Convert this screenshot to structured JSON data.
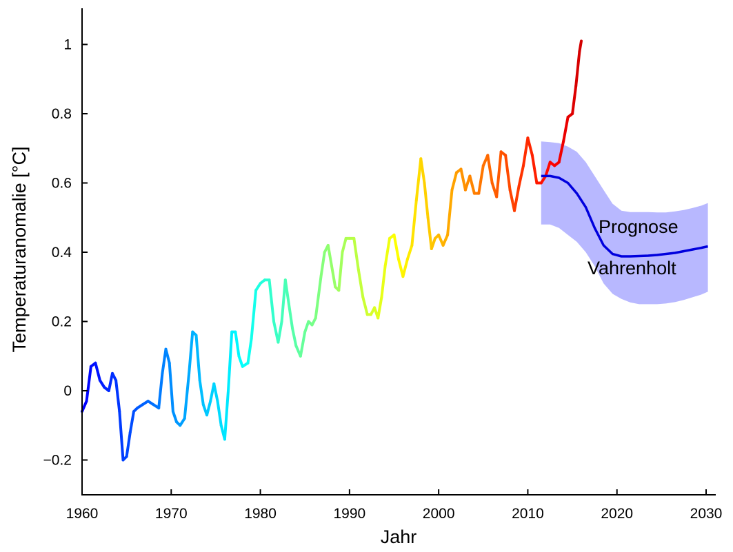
{
  "chart_data": {
    "type": "line",
    "xlabel": "Jahr",
    "ylabel": "Temperaturanomalie [°C]",
    "xlim": [
      1960,
      2031
    ],
    "ylim": [
      -0.3,
      1.1
    ],
    "x_ticks": [
      1960,
      1970,
      1980,
      1990,
      2000,
      2010,
      2020,
      2030
    ],
    "x_tick_labels": [
      "1960",
      "1970",
      "1980",
      "1990",
      "2000",
      "2010",
      "2020",
      "2030"
    ],
    "y_ticks": [
      -0.2,
      0,
      0.2,
      0.4,
      0.6,
      0.8,
      1
    ],
    "y_tick_labels": [
      "−0.2",
      "0",
      "0.2",
      "0.4",
      "0.6",
      "0.8",
      "1"
    ],
    "grid": false,
    "annotations": [
      "Prognose",
      "Vahrenholt"
    ],
    "series": [
      {
        "color_scale": "jet (by year)",
        "x": [
          1960.0,
          1960.5,
          1961.0,
          1961.5,
          1962.0,
          1962.5,
          1963.0,
          1963.4,
          1963.8,
          1964.2,
          1964.6,
          1965.0,
          1965.4,
          1965.8,
          1966.2,
          1966.8,
          1967.4,
          1968.0,
          1968.6,
          1969.0,
          1969.4,
          1969.8,
          1970.2,
          1970.6,
          1971.0,
          1971.5,
          1972.0,
          1972.4,
          1972.8,
          1973.2,
          1973.6,
          1974.0,
          1974.4,
          1974.8,
          1975.2,
          1975.6,
          1976.0,
          1976.4,
          1976.8,
          1977.2,
          1977.6,
          1978.0,
          1978.6,
          1979.0,
          1979.5,
          1980.0,
          1980.5,
          1981.0,
          1981.5,
          1982.0,
          1982.4,
          1982.8,
          1983.2,
          1983.6,
          1984.0,
          1984.5,
          1985.0,
          1985.4,
          1985.8,
          1986.2,
          1986.8,
          1987.2,
          1987.6,
          1988.0,
          1988.4,
          1988.8,
          1989.2,
          1989.6,
          1990.0,
          1990.5,
          1991.0,
          1991.5,
          1992.0,
          1992.4,
          1992.8,
          1993.2,
          1993.6,
          1994.0,
          1994.5,
          1995.0,
          1995.5,
          1996.0,
          1996.5,
          1997.0,
          1997.5,
          1998.0,
          1998.4,
          1998.8,
          1999.2,
          1999.6,
          2000.0,
          2000.5,
          2001.0,
          2001.5,
          2002.0,
          2002.5,
          2003.0,
          2003.5,
          2004.0,
          2004.5,
          2005.0,
          2005.5,
          2006.0,
          2006.5,
          2007.0,
          2007.5,
          2008.0,
          2008.5,
          2009.0,
          2009.5,
          2010.0,
          2010.5,
          2011.0,
          2011.5,
          2012.0,
          2012.5,
          2013.0,
          2013.5,
          2014.0,
          2014.5,
          2015.0,
          2015.4,
          2015.8,
          2016.0
        ],
        "values": [
          -0.06,
          -0.03,
          0.07,
          0.08,
          0.03,
          0.01,
          0.0,
          0.05,
          0.03,
          -0.06,
          -0.2,
          -0.19,
          -0.12,
          -0.06,
          -0.05,
          -0.04,
          -0.03,
          -0.04,
          -0.05,
          0.05,
          0.12,
          0.08,
          -0.06,
          -0.09,
          -0.1,
          -0.08,
          0.05,
          0.17,
          0.16,
          0.03,
          -0.04,
          -0.07,
          -0.03,
          0.02,
          -0.03,
          -0.1,
          -0.14,
          0.0,
          0.17,
          0.17,
          0.1,
          0.07,
          0.08,
          0.15,
          0.29,
          0.31,
          0.32,
          0.32,
          0.2,
          0.14,
          0.2,
          0.32,
          0.25,
          0.18,
          0.13,
          0.1,
          0.17,
          0.2,
          0.19,
          0.21,
          0.33,
          0.4,
          0.42,
          0.36,
          0.3,
          0.29,
          0.4,
          0.44,
          0.44,
          0.44,
          0.35,
          0.27,
          0.22,
          0.22,
          0.24,
          0.21,
          0.27,
          0.36,
          0.44,
          0.45,
          0.38,
          0.33,
          0.38,
          0.42,
          0.55,
          0.67,
          0.6,
          0.5,
          0.41,
          0.44,
          0.45,
          0.42,
          0.45,
          0.58,
          0.63,
          0.64,
          0.58,
          0.62,
          0.57,
          0.57,
          0.65,
          0.68,
          0.6,
          0.56,
          0.69,
          0.68,
          0.58,
          0.52,
          0.59,
          0.65,
          0.73,
          0.68,
          0.6,
          0.6,
          0.62,
          0.66,
          0.65,
          0.66,
          0.72,
          0.79,
          0.8,
          0.88,
          0.98,
          1.01
        ]
      },
      {
        "name": "Prognose Vahrenholt",
        "color": "#0000dd",
        "x": [
          2011.5,
          2012.5,
          2013.5,
          2014.5,
          2015.5,
          2016.5,
          2017.5,
          2018.5,
          2019.5,
          2020.5,
          2021.5,
          2022.5,
          2023.5,
          2024.5,
          2025.5,
          2026.5,
          2027.5,
          2028.5,
          2029.5,
          2030.2
        ],
        "values": [
          0.62,
          0.62,
          0.615,
          0.6,
          0.57,
          0.53,
          0.47,
          0.42,
          0.395,
          0.388,
          0.388,
          0.389,
          0.39,
          0.392,
          0.395,
          0.398,
          0.403,
          0.408,
          0.413,
          0.417
        ],
        "band_lower": [
          0.48,
          0.48,
          0.47,
          0.45,
          0.43,
          0.4,
          0.36,
          0.31,
          0.28,
          0.265,
          0.255,
          0.25,
          0.25,
          0.25,
          0.252,
          0.256,
          0.262,
          0.27,
          0.278,
          0.286
        ],
        "band_upper": [
          0.72,
          0.718,
          0.715,
          0.705,
          0.69,
          0.66,
          0.62,
          0.58,
          0.54,
          0.52,
          0.516,
          0.516,
          0.516,
          0.515,
          0.515,
          0.518,
          0.522,
          0.528,
          0.535,
          0.542
        ],
        "band_color": "#b8b8ff"
      }
    ]
  }
}
